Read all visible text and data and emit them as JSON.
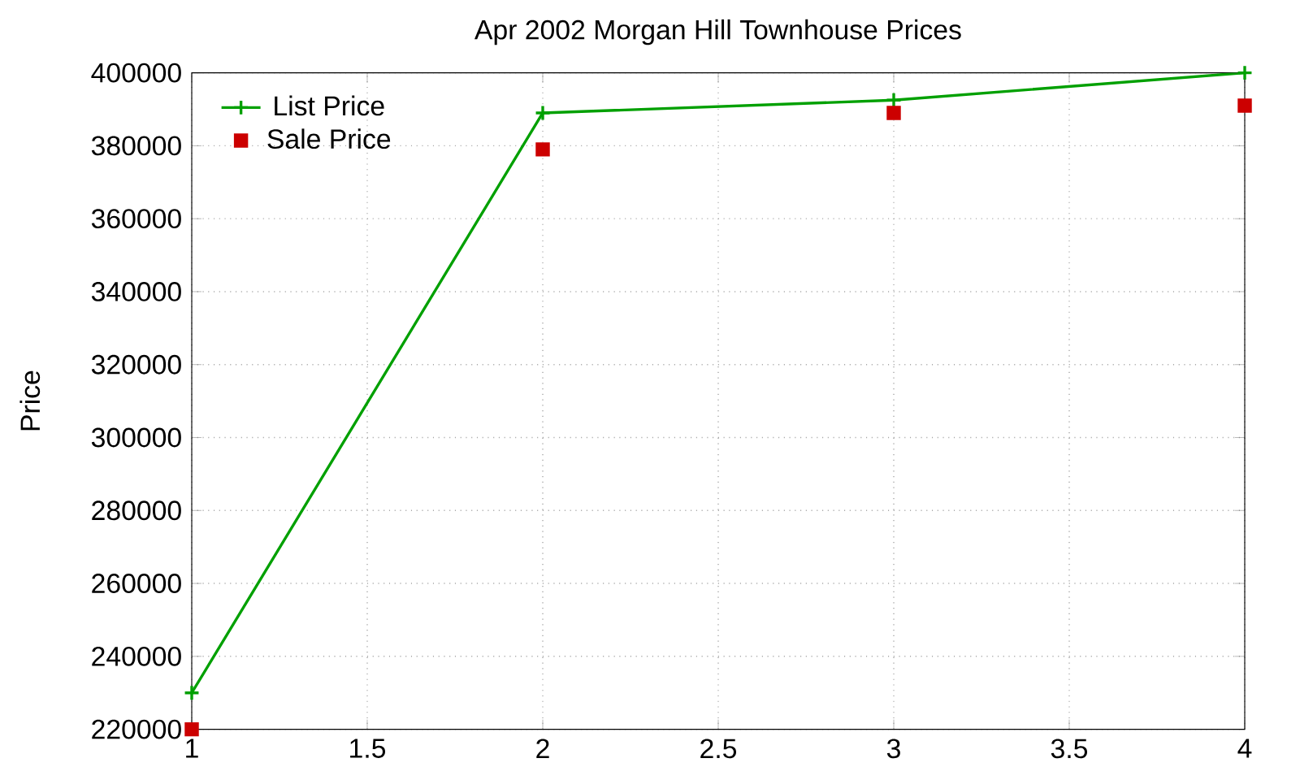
{
  "chart_data": {
    "type": "line",
    "title": "Apr 2002 Morgan Hill Townhouse Prices",
    "ylabel": "Price",
    "x": [
      1,
      2,
      3,
      4
    ],
    "series": [
      {
        "name": "List Price",
        "marker": "cross",
        "color": "#00a000",
        "values": [
          230000,
          389000,
          392500,
          400000
        ]
      },
      {
        "name": "Sale Price",
        "type": "scatter",
        "marker": "square",
        "color": "#cc0000",
        "values": [
          220000,
          379000,
          389000,
          391000
        ]
      }
    ],
    "xlim": [
      1,
      4
    ],
    "ylim": [
      220000,
      400000
    ],
    "xticks": [
      1,
      1.5,
      2,
      2.5,
      3,
      3.5,
      4
    ],
    "yticks": [
      220000,
      240000,
      260000,
      280000,
      300000,
      320000,
      340000,
      360000,
      380000,
      400000
    ],
    "grid": true,
    "legend": "top left"
  }
}
